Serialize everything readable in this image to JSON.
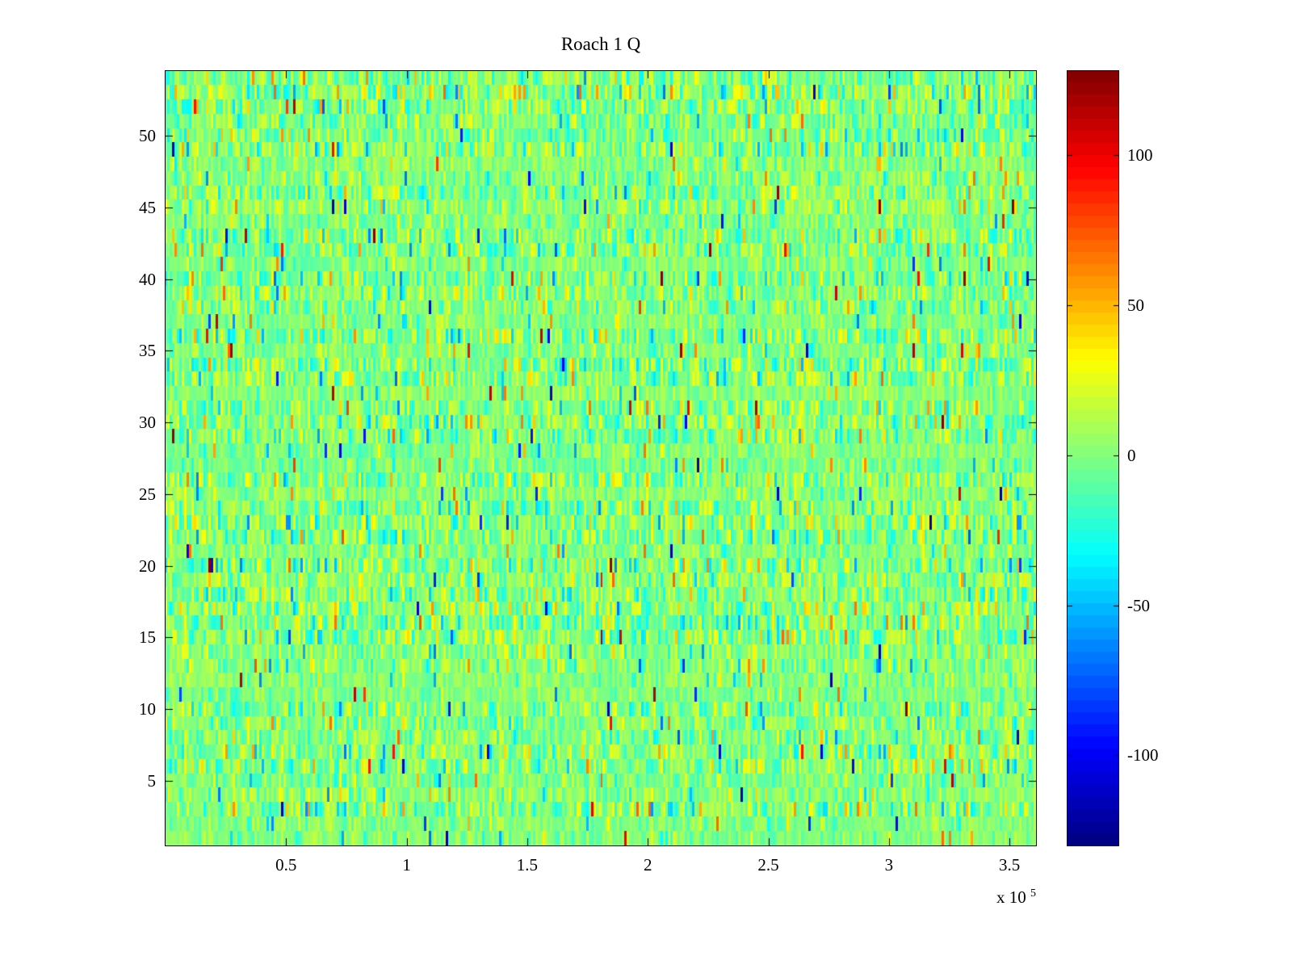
{
  "figure": {
    "background_color": "#ffffff",
    "axes_color": "#000000"
  },
  "chart_data": {
    "type": "heatmap",
    "title": "Roach 1 Q",
    "xlabel": "",
    "ylabel": "",
    "xlim": [
      0,
      361000
    ],
    "ylim": [
      0.5,
      54.5
    ],
    "rows": 54,
    "cols": 360,
    "x_ticks": [
      50000,
      100000,
      150000,
      200000,
      250000,
      300000,
      350000
    ],
    "x_tick_labels": [
      "0.5",
      "1",
      "1.5",
      "2",
      "2.5",
      "3",
      "3.5"
    ],
    "x_axis_exponent": {
      "prefix": "x 10",
      "power": "5"
    },
    "y_ticks": [
      5,
      10,
      15,
      20,
      25,
      30,
      35,
      40,
      45,
      50
    ],
    "y_tick_labels": [
      "5",
      "10",
      "15",
      "20",
      "25",
      "30",
      "35",
      "40",
      "45",
      "50"
    ],
    "colormap": "jet",
    "clim": [
      -130,
      128
    ],
    "colorbar_ticks": [
      100,
      50,
      0,
      -50,
      -100
    ],
    "colorbar_tick_labels": [
      "100",
      "50",
      "0",
      "-50",
      "-100"
    ],
    "grid": false,
    "legend": "none",
    "data_summary": {
      "description": "dense random noise centered near 0 (light green in jet colormap) with sparse cyan/yellow speckle and rare strong red/orange and blue outliers",
      "mean": 0,
      "std": 14,
      "outlier_fraction": 0.033,
      "seed": 1234567
    }
  }
}
